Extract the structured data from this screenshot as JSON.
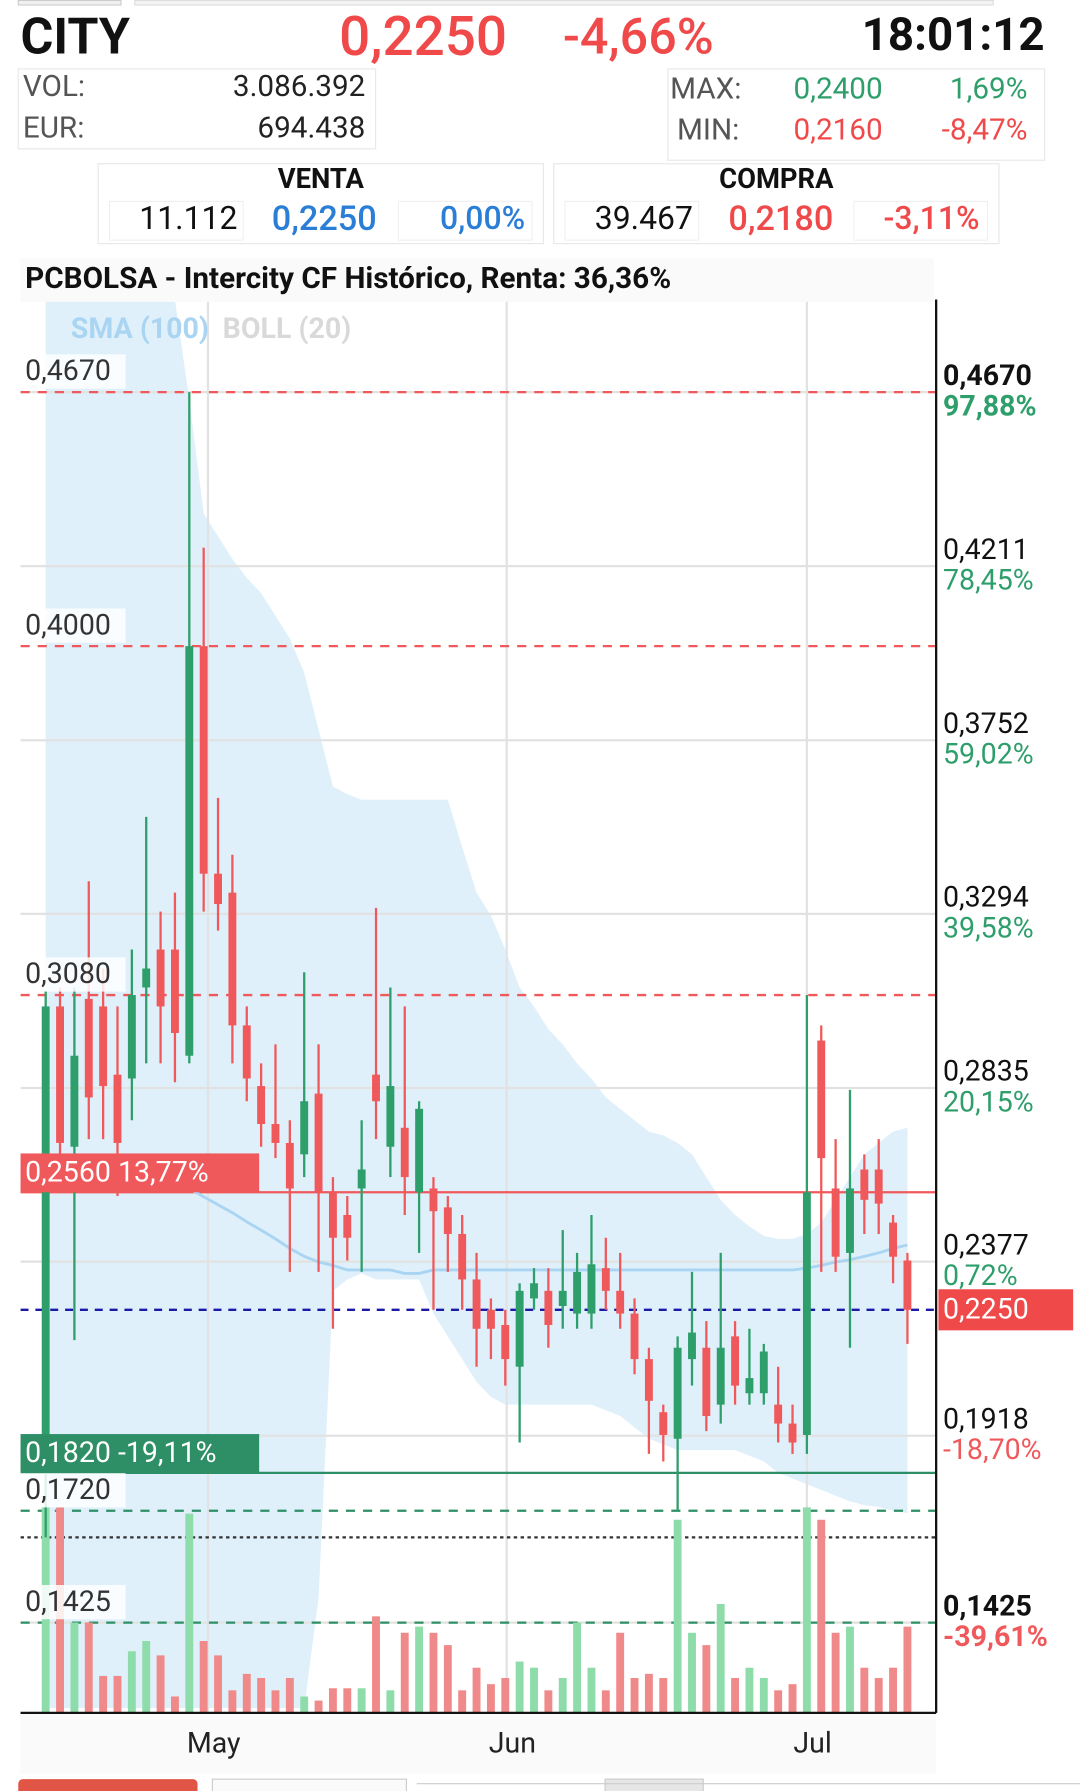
{
  "header": {
    "ticker": "CITY",
    "price": "0,2250",
    "change": "-4,66%",
    "time": "18:01:12",
    "vol_label": "VOL:",
    "vol": "3.086.392",
    "eur_label": "EUR:",
    "eur": "694.438",
    "max_label": "MAX:",
    "max": "0,2400",
    "max_change": "1,69%",
    "min_label": "MIN:",
    "min": "0,2160",
    "min_change": "-8,47%"
  },
  "venta": {
    "title": "VENTA",
    "qty": "11.112",
    "price": "0,2250",
    "change": "0,00%"
  },
  "compra": {
    "title": "COMPRA",
    "qty": "39.467",
    "price": "0,2180",
    "change": "-3,11%"
  },
  "chart_data": {
    "type": "candlestick",
    "title": "PCBOLSA - Intercity CF Histórico, Renta: 36,36%",
    "indicators": [
      {
        "name": "SMA (100)",
        "color": "#a9d5f2"
      },
      {
        "name": "BOLL (20)",
        "color": "#d9d9d9"
      }
    ],
    "up_color": "#2e9e6b",
    "down_color": "#f0595b",
    "volume_up_color": "#8fdcab",
    "volume_down_color": "#f08a8a",
    "band_color": "#dff0fb",
    "sma_color": "#a9d5f2",
    "xlim": [
      -1.75,
      62
    ],
    "ylim": [
      0.1187,
      0.4914
    ],
    "volume_lim": [
      0,
      100
    ],
    "xticks": [
      {
        "value": 11.3,
        "label": "May"
      },
      {
        "value": 32.1,
        "label": "Jun"
      },
      {
        "value": 53,
        "label": "Jul"
      }
    ],
    "yticks": [
      {
        "value": 0.467,
        "label": "0,4670"
      },
      {
        "value": 0.4211,
        "label": "0,4211"
      },
      {
        "value": 0.3752,
        "label": "0,3752"
      },
      {
        "value": 0.3294,
        "label": "0,3294"
      },
      {
        "value": 0.2835,
        "label": "0,2835"
      },
      {
        "value": 0.2377,
        "label": "0,2377"
      },
      {
        "value": 0.1918,
        "label": "0,1918"
      },
      {
        "value": 0.1425,
        "label": "0,1425"
      }
    ],
    "ytick_changes": [
      "97,88%",
      "78,45%",
      "59,02%",
      "39,58%",
      "20,15%",
      "0,72%",
      "-18,70%",
      "-39,61%"
    ],
    "grid": true,
    "levels": [
      {
        "value": 0.467,
        "label": "0,4670",
        "color": "#f0595b",
        "style": "dashed"
      },
      {
        "value": 0.4,
        "label": "0,4000",
        "color": "#f0595b",
        "style": "dashed"
      },
      {
        "value": 0.308,
        "label": "0,3080",
        "color": "#f0595b",
        "style": "dashed"
      },
      {
        "value": 0.256,
        "label": "0,2560 13,77%",
        "color": "#f0595b",
        "style": "solid"
      },
      {
        "value": 0.182,
        "label": "0,1820 -19,11%",
        "color": "#2e8f67",
        "style": "solid"
      },
      {
        "value": 0.172,
        "label": "0,1720",
        "color": "#2e8f67",
        "style": "dashed"
      },
      {
        "value": 0.165,
        "color": "#333333",
        "style": "dotted"
      },
      {
        "value": 0.1425,
        "label": "0,1425",
        "color": "#2e8f67",
        "style": "dashed"
      }
    ],
    "current": {
      "value": 0.225,
      "label": "0,2250",
      "color": "#1a1aa6",
      "tag_color": "#f0494a"
    },
    "open": [
      0.183,
      0.305,
      0.268,
      0.307,
      0.305,
      0.287,
      0.286,
      0.31,
      0.32,
      0.32,
      0.292,
      0.4,
      0.34,
      0.335,
      0.3,
      0.284,
      0.274,
      0.269,
      0.266,
      0.282,
      0.256,
      0.25,
      0.257,
      0.287,
      0.268,
      0.273,
      0.256,
      0.257,
      0.252,
      0.245,
      0.233,
      0.225,
      0.221,
      0.21,
      0.228,
      0.23,
      0.226,
      0.224,
      0.224,
      0.236,
      0.23,
      0.224,
      0.212,
      0.198,
      0.191,
      0.212,
      0.215,
      0.2,
      0.218,
      0.203,
      0.203,
      0.2,
      0.195,
      0.192,
      0.296,
      0.257,
      0.24,
      0.262,
      0.262,
      0.248,
      0.238
    ],
    "high": [
      0.309,
      0.31,
      0.31,
      0.338,
      0.315,
      0.305,
      0.32,
      0.355,
      0.33,
      0.335,
      0.467,
      0.426,
      0.36,
      0.345,
      0.305,
      0.29,
      0.295,
      0.275,
      0.314,
      0.295,
      0.26,
      0.255,
      0.275,
      0.331,
      0.31,
      0.305,
      0.28,
      0.26,
      0.255,
      0.25,
      0.24,
      0.228,
      0.225,
      0.232,
      0.236,
      0.236,
      0.246,
      0.24,
      0.25,
      0.244,
      0.24,
      0.228,
      0.215,
      0.2,
      0.218,
      0.235,
      0.222,
      0.24,
      0.222,
      0.22,
      0.216,
      0.21,
      0.2,
      0.308,
      0.3,
      0.27,
      0.283,
      0.266,
      0.27,
      0.25,
      0.24
    ],
    "low": [
      0.165,
      0.26,
      0.217,
      0.27,
      0.27,
      0.255,
      0.275,
      0.29,
      0.29,
      0.285,
      0.29,
      0.33,
      0.325,
      0.29,
      0.28,
      0.268,
      0.265,
      0.235,
      0.26,
      0.235,
      0.22,
      0.238,
      0.235,
      0.27,
      0.26,
      0.25,
      0.24,
      0.225,
      0.235,
      0.225,
      0.21,
      0.212,
      0.205,
      0.19,
      0.225,
      0.215,
      0.22,
      0.22,
      0.22,
      0.225,
      0.22,
      0.208,
      0.187,
      0.185,
      0.172,
      0.205,
      0.193,
      0.195,
      0.2,
      0.2,
      0.2,
      0.19,
      0.187,
      0.187,
      0.235,
      0.235,
      0.215,
      0.245,
      0.245,
      0.232,
      0.216
    ],
    "close": [
      0.305,
      0.269,
      0.292,
      0.281,
      0.284,
      0.269,
      0.308,
      0.315,
      0.305,
      0.298,
      0.4,
      0.34,
      0.332,
      0.3,
      0.286,
      0.274,
      0.269,
      0.257,
      0.28,
      0.256,
      0.244,
      0.244,
      0.262,
      0.28,
      0.284,
      0.26,
      0.278,
      0.251,
      0.245,
      0.233,
      0.22,
      0.22,
      0.212,
      0.23,
      0.232,
      0.221,
      0.23,
      0.235,
      0.237,
      0.23,
      0.224,
      0.212,
      0.201,
      0.192,
      0.215,
      0.219,
      0.197,
      0.215,
      0.205,
      0.207,
      0.214,
      0.195,
      0.19,
      0.256,
      0.265,
      0.239,
      0.257,
      0.254,
      0.253,
      0.239,
      0.225
    ],
    "volume": [
      100,
      100,
      44,
      44,
      18,
      18,
      30,
      35,
      28,
      8,
      97,
      35,
      28,
      11,
      19,
      17,
      11,
      17,
      8,
      6,
      12,
      12,
      12,
      47,
      11,
      39,
      42,
      39,
      33,
      11,
      22,
      14,
      17,
      25,
      22,
      11,
      17,
      44,
      22,
      11,
      39,
      17,
      19,
      17,
      94,
      39,
      33,
      53,
      17,
      22,
      17,
      11,
      14,
      100,
      94,
      39,
      42,
      22,
      17,
      22,
      42
    ],
    "boll_upper": [
      0.4914,
      0.4914,
      0.4914,
      0.4914,
      0.4914,
      0.4914,
      0.4914,
      0.4914,
      0.4914,
      0.4914,
      0.465,
      0.435,
      0.429,
      0.423,
      0.418,
      0.414,
      0.408,
      0.402,
      0.393,
      0.378,
      0.363,
      0.361,
      0.3595,
      0.3595,
      0.3595,
      0.3595,
      0.3595,
      0.3595,
      0.3595,
      0.347,
      0.335,
      0.329,
      0.32,
      0.31,
      0.305,
      0.299,
      0.295,
      0.29,
      0.286,
      0.281,
      0.278,
      0.275,
      0.272,
      0.271,
      0.269,
      0.266,
      0.26,
      0.254,
      0.25,
      0.247,
      0.2445,
      0.2437,
      0.2437,
      0.245,
      0.248,
      0.254,
      0.26,
      0.266,
      0.269,
      0.272,
      0.273
    ],
    "boll_lower": [
      0.12,
      0.12,
      0.12,
      0.12,
      0.12,
      0.12,
      0.12,
      0.12,
      0.12,
      0.12,
      0.12,
      0.12,
      0.12,
      0.12,
      0.12,
      0.12,
      0.12,
      0.12,
      0.12,
      0.149,
      0.23,
      0.233,
      0.2346,
      0.233,
      0.233,
      0.233,
      0.233,
      0.224,
      0.218,
      0.212,
      0.206,
      0.202,
      0.2,
      0.2,
      0.2,
      0.2,
      0.2,
      0.2,
      0.2,
      0.1985,
      0.197,
      0.194,
      0.191,
      0.1895,
      0.188,
      0.188,
      0.188,
      0.188,
      0.188,
      0.1865,
      0.185,
      0.182,
      0.1805,
      0.179,
      0.1775,
      0.176,
      0.1745,
      0.1735,
      0.173,
      0.172,
      0.1714
    ],
    "sma": [
      null,
      null,
      null,
      null,
      null,
      null,
      null,
      null,
      null,
      0.2587,
      0.257,
      0.2548,
      0.2527,
      0.2506,
      0.2482,
      0.246,
      0.2437,
      0.2412,
      0.2391,
      0.2376,
      0.2367,
      0.2355,
      0.2355,
      0.2355,
      0.2355,
      0.2346,
      0.2346,
      0.2355,
      0.2355,
      0.2355,
      0.2355,
      0.2355,
      0.2355,
      0.2355,
      0.2355,
      0.2355,
      0.2355,
      0.2355,
      0.2355,
      0.2355,
      0.2355,
      0.2355,
      0.2355,
      0.2355,
      0.2355,
      0.2355,
      0.2355,
      0.2355,
      0.2355,
      0.2355,
      0.2355,
      0.2355,
      0.2355,
      0.236,
      0.2367,
      0.2376,
      0.2382,
      0.2391,
      0.24,
      0.2412,
      0.2421
    ]
  }
}
